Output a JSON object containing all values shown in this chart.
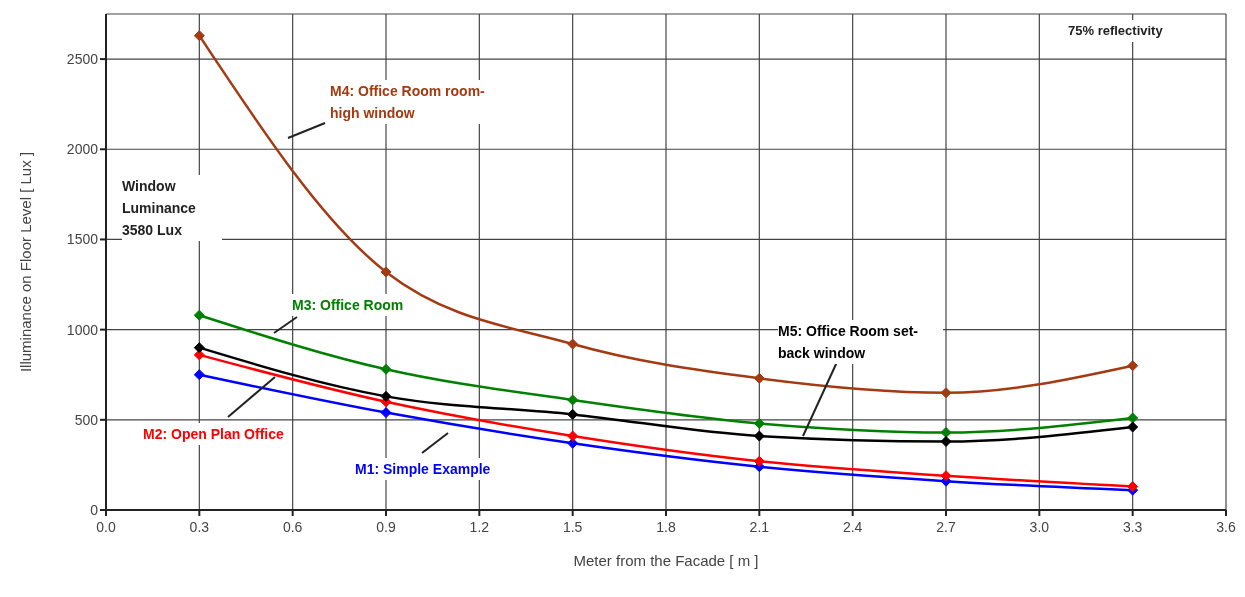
{
  "chart_data": {
    "type": "line",
    "xlabel": "Meter from the Facade [ m ]",
    "ylabel": "Illuminance on Floor Level [ Lux ]",
    "x": [
      0.3,
      0.9,
      1.5,
      2.1,
      2.7,
      3.3
    ],
    "series": [
      {
        "name": "M1: Simple Example",
        "color": "#0000ff",
        "values": [
          750,
          540,
          370,
          240,
          160,
          110
        ]
      },
      {
        "name": "M2: Open Plan Office",
        "color": "#ff0000",
        "values": [
          860,
          600,
          410,
          270,
          190,
          130
        ]
      },
      {
        "name": "M3: Office Room",
        "color": "#008000",
        "values": [
          1080,
          780,
          610,
          480,
          430,
          510
        ]
      },
      {
        "name": "M4: Office Room room-high window",
        "color": "#a33a12",
        "values": [
          2630,
          1320,
          920,
          730,
          650,
          800
        ]
      },
      {
        "name": "M5: Office Room set-back window",
        "color": "#000000",
        "values": [
          900,
          630,
          530,
          410,
          380,
          460
        ]
      }
    ],
    "xlim": [
      0,
      3.6
    ],
    "xticks": [
      {
        "value": 0,
        "label": "0.0"
      },
      0.3,
      0.6,
      0.9,
      1.2,
      1.5,
      1.8,
      2.1,
      2.4,
      2.7,
      {
        "value": 3,
        "label": "3.0"
      },
      3.3,
      3.6
    ],
    "ylim": [
      0,
      2750
    ],
    "yticks": [
      0,
      500,
      1000,
      1500,
      2000,
      2500
    ],
    "annotations": [
      "75% reflectivity",
      "Window Luminance 3580 Lux"
    ],
    "grid": true,
    "marker": "diamond",
    "line_style": "solid"
  }
}
